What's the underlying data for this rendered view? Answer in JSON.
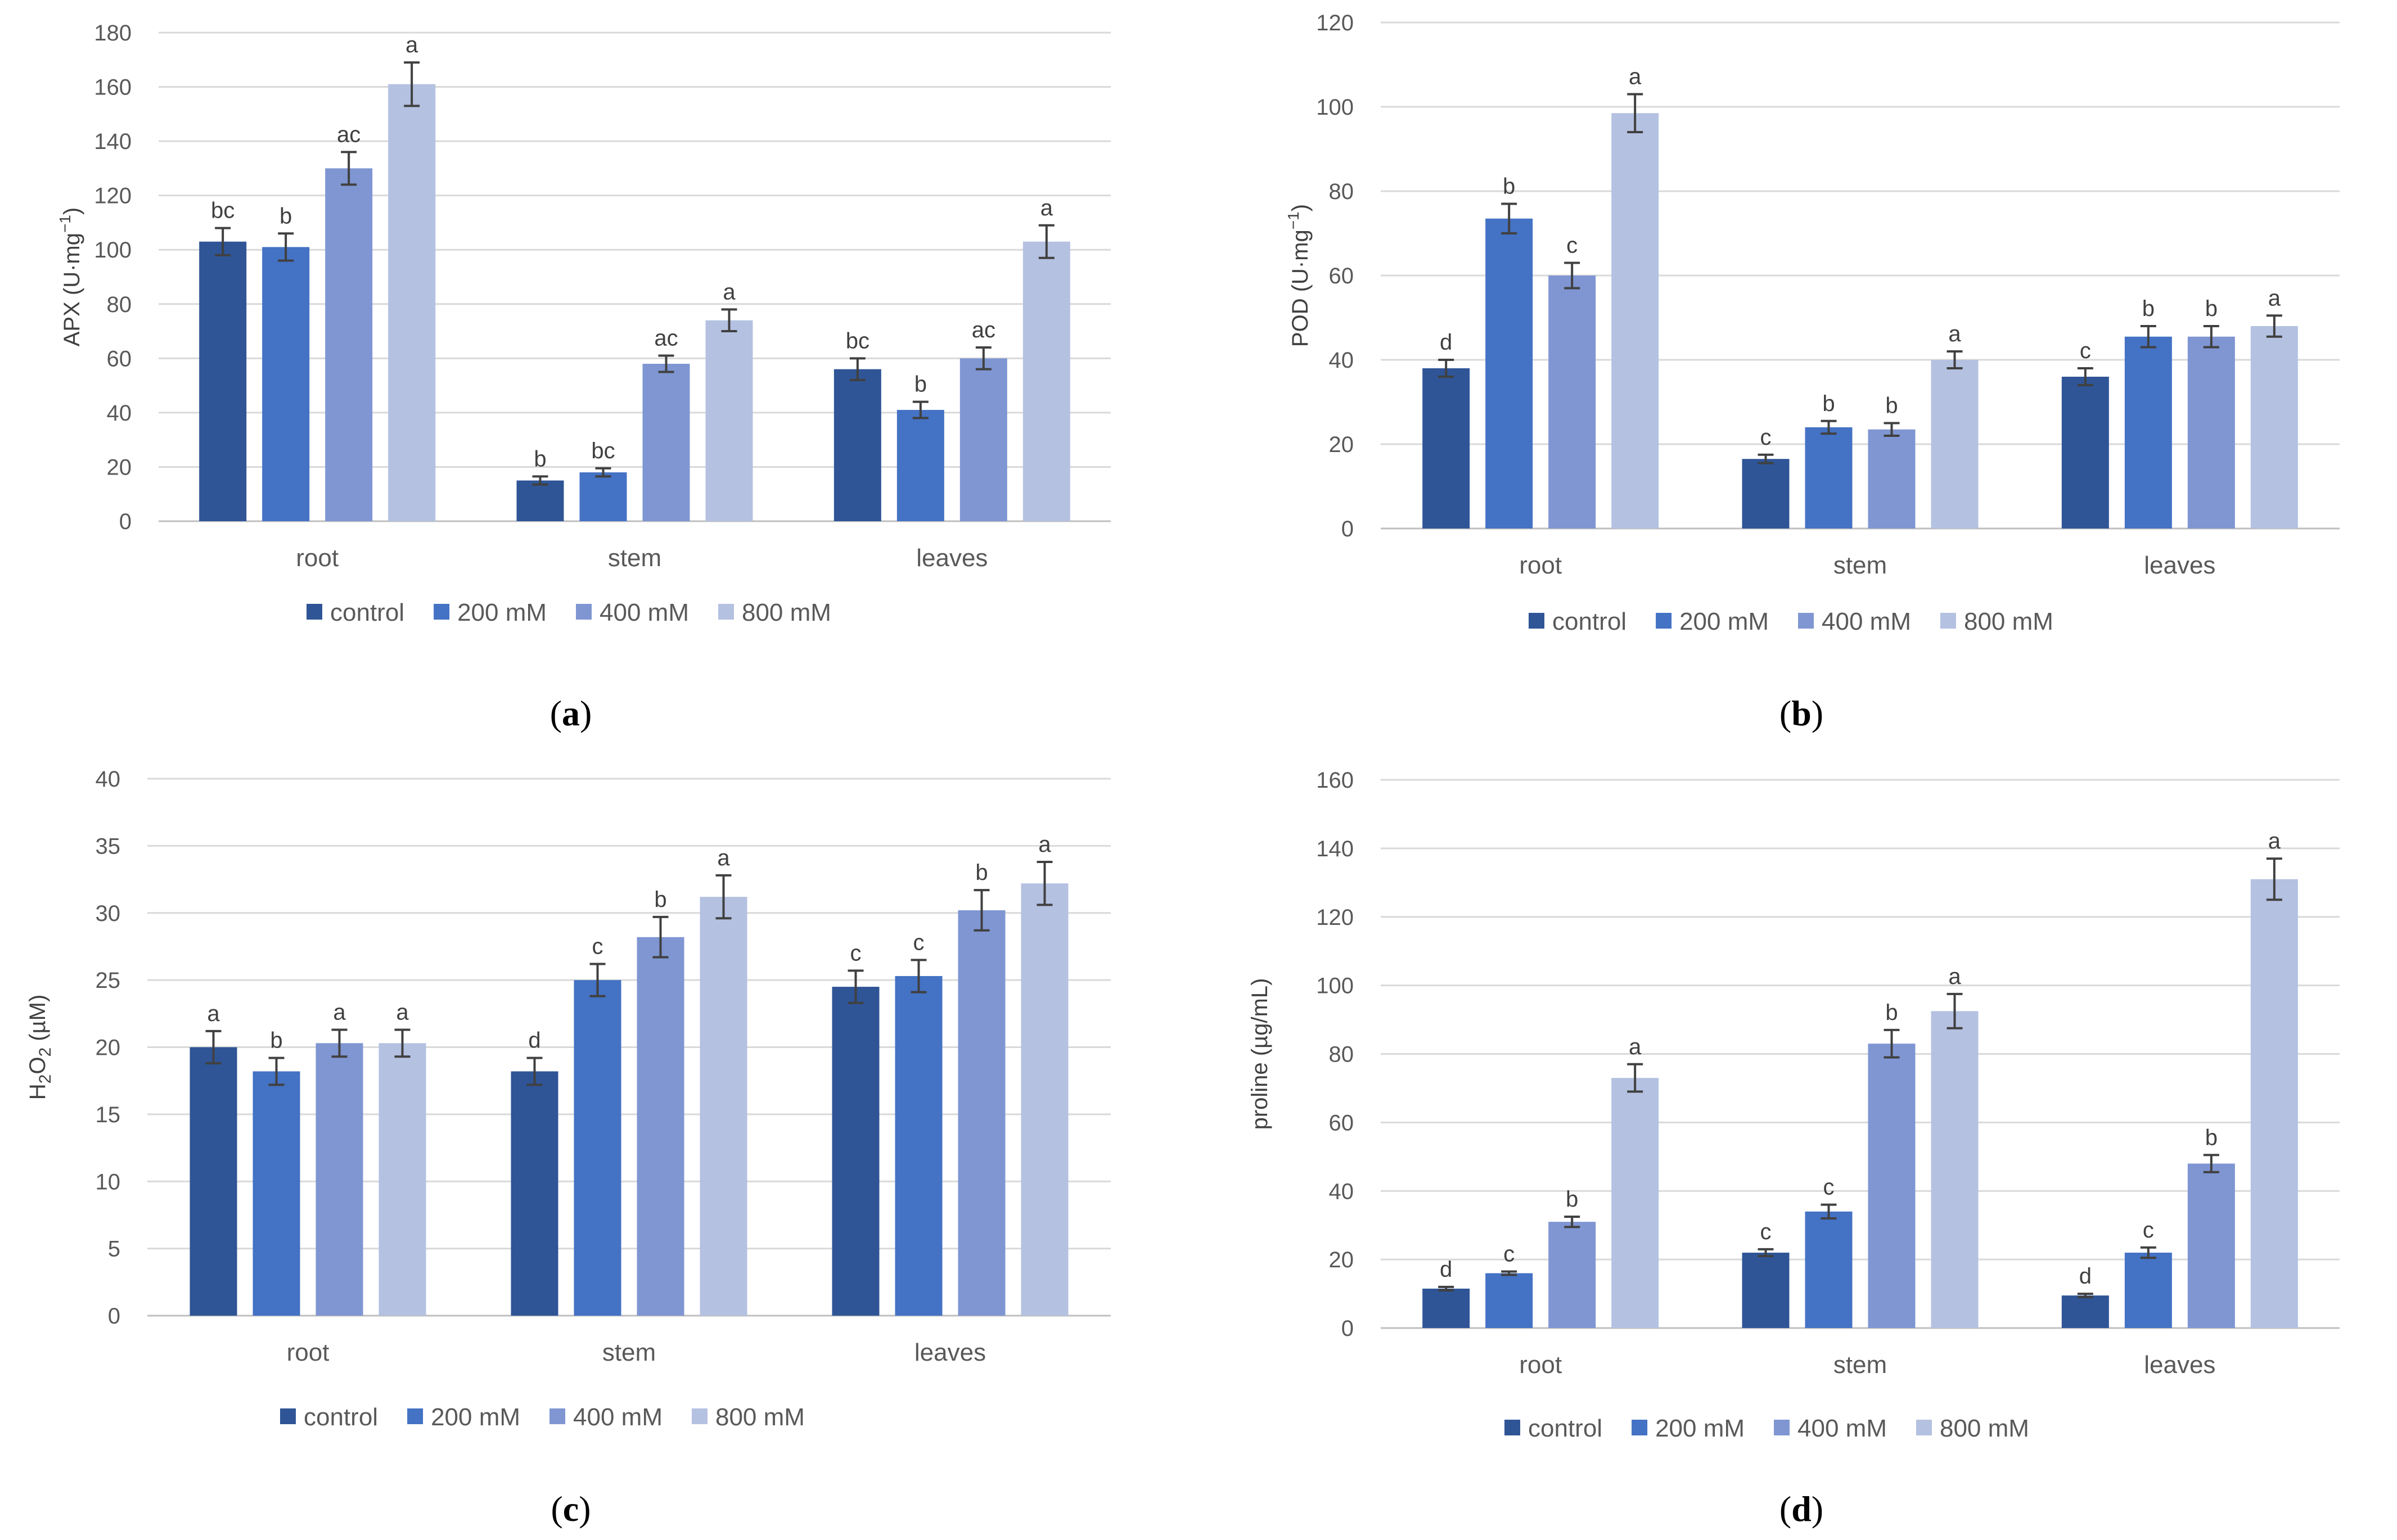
{
  "series_names": [
    "control",
    "200 mM",
    "400 mM",
    "800 mM"
  ],
  "series_colors": [
    "#2f5597",
    "#4472c4",
    "#7f96d2",
    "#b4c1e1"
  ],
  "captions": [
    {
      "open": "(",
      "letter": "a",
      "close": ")"
    },
    {
      "open": "(",
      "letter": "b",
      "close": ")"
    },
    {
      "open": "(",
      "letter": "c",
      "close": ")"
    },
    {
      "open": "(",
      "letter": "d",
      "close": ")"
    }
  ],
  "chart_data": [
    {
      "type": "bar",
      "panel": "a",
      "ylabel": "APX (U·mg",
      "ylabel_sup": "−1",
      "ylabel_end": ")",
      "ylim": [
        0,
        180
      ],
      "yticks": [
        0,
        20,
        40,
        60,
        80,
        100,
        120,
        140,
        160,
        180
      ],
      "categories": [
        "root",
        "stem",
        "leaves"
      ],
      "series": [
        {
          "name": "control",
          "values": [
            103,
            15,
            56
          ],
          "errors": [
            5,
            1.5,
            4
          ],
          "letters": [
            "bc",
            "b",
            "bc"
          ]
        },
        {
          "name": "200 mM",
          "values": [
            101,
            18,
            41
          ],
          "errors": [
            5,
            1.5,
            3
          ],
          "letters": [
            "b",
            "bc",
            "b"
          ]
        },
        {
          "name": "400 mM",
          "values": [
            130,
            58,
            60
          ],
          "errors": [
            6,
            3,
            4
          ],
          "letters": [
            "ac",
            "ac",
            "ac"
          ]
        },
        {
          "name": "800 mM",
          "values": [
            161,
            74,
            103
          ],
          "errors": [
            8,
            4,
            6
          ],
          "letters": [
            "a",
            "a",
            "a"
          ]
        }
      ]
    },
    {
      "type": "bar",
      "panel": "b",
      "ylabel": "POD (U·mg",
      "ylabel_sup": "−1",
      "ylabel_end": ")",
      "ylim": [
        0,
        120
      ],
      "yticks": [
        0,
        20,
        40,
        60,
        80,
        100,
        120
      ],
      "categories": [
        "root",
        "stem",
        "leaves"
      ],
      "series": [
        {
          "name": "control",
          "values": [
            38,
            16.5,
            36
          ],
          "errors": [
            2,
            1,
            2
          ],
          "letters": [
            "d",
            "c",
            "c"
          ]
        },
        {
          "name": "200 mM",
          "values": [
            73.5,
            24,
            45.5
          ],
          "errors": [
            3.5,
            1.5,
            2.5
          ],
          "letters": [
            "b",
            "b",
            "b"
          ]
        },
        {
          "name": "400 mM",
          "values": [
            60,
            23.5,
            45.5
          ],
          "errors": [
            3,
            1.5,
            2.5
          ],
          "letters": [
            "c",
            "b",
            "b"
          ]
        },
        {
          "name": "800 mM",
          "values": [
            98.5,
            40,
            48
          ],
          "errors": [
            4.5,
            2,
            2.5
          ],
          "letters": [
            "a",
            "a",
            "a"
          ]
        }
      ]
    },
    {
      "type": "bar",
      "panel": "c",
      "ylabel": "H",
      "ylabel_sub1": "2",
      "ylabel_mid": "O",
      "ylabel_sub2": "2",
      "ylabel_end": " (µM)",
      "ylim": [
        0,
        40
      ],
      "yticks": [
        0,
        5,
        10,
        15,
        20,
        25,
        30,
        35,
        40
      ],
      "categories": [
        "root",
        "stem",
        "leaves"
      ],
      "series": [
        {
          "name": "control",
          "values": [
            20,
            18.2,
            24.5
          ],
          "errors": [
            1.2,
            1,
            1.2
          ],
          "letters": [
            "a",
            "d",
            "c"
          ]
        },
        {
          "name": "200 mM",
          "values": [
            18.2,
            25,
            25.3
          ],
          "errors": [
            1,
            1.2,
            1.2
          ],
          "letters": [
            "b",
            "c",
            "c"
          ]
        },
        {
          "name": "400 mM",
          "values": [
            20.3,
            28.2,
            30.2
          ],
          "errors": [
            1,
            1.5,
            1.5
          ],
          "letters": [
            "a",
            "b",
            "b"
          ]
        },
        {
          "name": "800 mM",
          "values": [
            20.3,
            31.2,
            32.2
          ],
          "errors": [
            1,
            1.6,
            1.6
          ],
          "letters": [
            "a",
            "a",
            "a"
          ]
        }
      ]
    },
    {
      "type": "bar",
      "panel": "d",
      "ylabel": "proline (µg/mL)",
      "ylim": [
        0,
        160
      ],
      "yticks": [
        0,
        20,
        40,
        60,
        80,
        100,
        120,
        140,
        160
      ],
      "categories": [
        "root",
        "stem",
        "leaves"
      ],
      "series": [
        {
          "name": "control",
          "values": [
            11.5,
            22,
            9.5
          ],
          "errors": [
            0.5,
            1,
            0.5
          ],
          "letters": [
            "d",
            "c",
            "d"
          ]
        },
        {
          "name": "200 mM",
          "values": [
            16,
            34,
            22
          ],
          "errors": [
            0.5,
            2,
            1.5
          ],
          "letters": [
            "c",
            "c",
            "c"
          ]
        },
        {
          "name": "400 mM",
          "values": [
            31,
            83,
            48
          ],
          "errors": [
            1.5,
            4,
            2.5
          ],
          "letters": [
            "b",
            "b",
            "b"
          ]
        },
        {
          "name": "800 mM",
          "values": [
            73,
            92.5,
            131
          ],
          "errors": [
            4,
            5,
            6
          ],
          "letters": [
            "a",
            "a",
            "a"
          ]
        }
      ]
    }
  ]
}
